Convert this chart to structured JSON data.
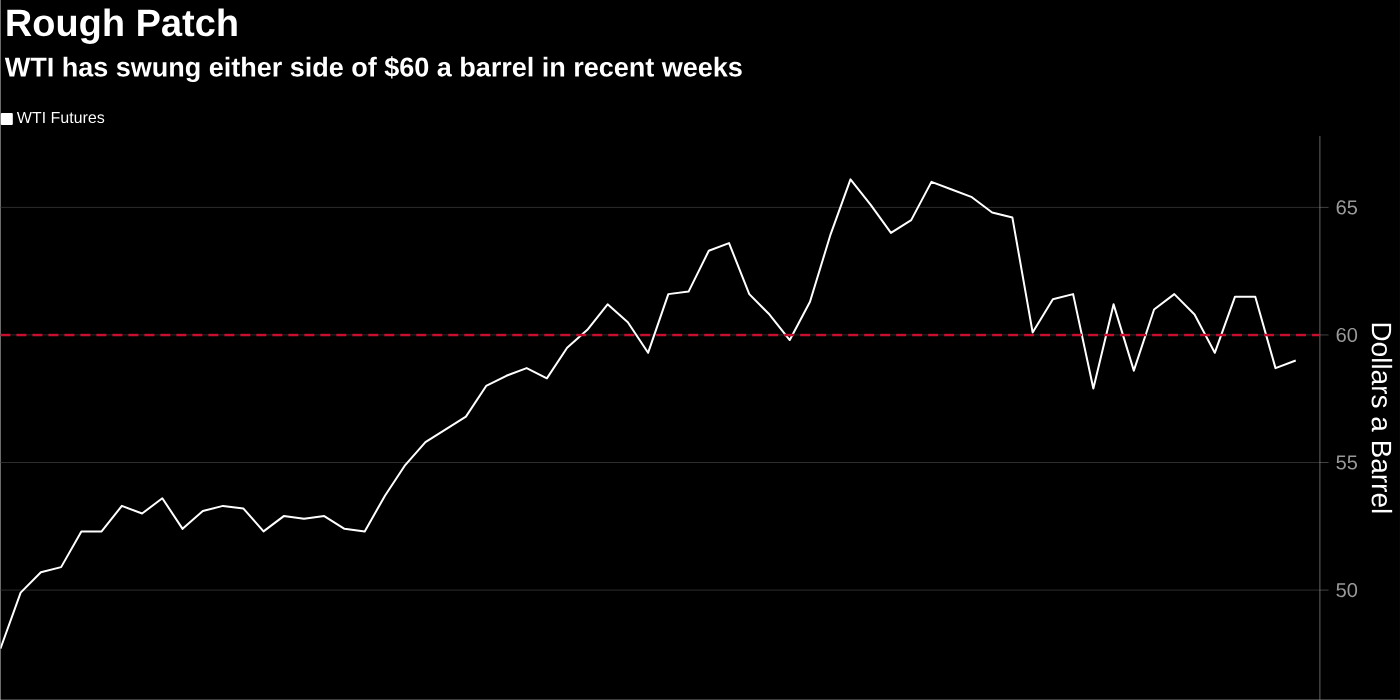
{
  "chart_data": {
    "type": "line",
    "title": "Rough Patch",
    "subtitle": "WTI has swung either side of $60 a barrel in recent weeks",
    "ylabel": "Dollars a Barrel",
    "categories": [
      null,
      null,
      null,
      null,
      null,
      null,
      null,
      null,
      null,
      null,
      null,
      null,
      null,
      null,
      null,
      null,
      null,
      null,
      null,
      null,
      null,
      null,
      null,
      null,
      null,
      null,
      null,
      null,
      null,
      null,
      null,
      null,
      null,
      null,
      null,
      null,
      null,
      null,
      null,
      null,
      null,
      null,
      null,
      null,
      null,
      null,
      null,
      null,
      null,
      null,
      null,
      null,
      null,
      null,
      null,
      null,
      null,
      null,
      null,
      null,
      null,
      null,
      null,
      null,
      null
    ],
    "series": [
      {
        "name": "WTI Futures",
        "color": "#ffffff",
        "values": [
          47.7,
          49.9,
          50.7,
          50.9,
          52.3,
          52.3,
          53.3,
          53.0,
          53.6,
          52.4,
          53.1,
          53.3,
          53.2,
          52.3,
          52.9,
          52.8,
          52.9,
          52.4,
          52.3,
          53.7,
          54.9,
          55.8,
          56.3,
          56.8,
          58.0,
          58.4,
          58.7,
          58.3,
          59.5,
          60.2,
          61.2,
          60.5,
          59.3,
          61.6,
          61.7,
          63.3,
          63.6,
          61.6,
          60.8,
          59.8,
          61.3,
          63.9,
          66.1,
          65.1,
          64.0,
          64.5,
          66.0,
          65.7,
          65.4,
          64.8,
          64.6,
          60.1,
          61.4,
          61.6,
          57.9,
          61.2,
          58.6,
          61.0,
          61.6,
          60.8,
          59.3,
          61.5,
          61.5,
          58.7,
          59.0
        ]
      }
    ],
    "ylim": [
      45.7,
      67.8
    ],
    "yticks": [
      50,
      55,
      60,
      65
    ],
    "grid": "y",
    "legend": "top left",
    "marker": "none",
    "line_style": "solid",
    "ref_lines": [
      {
        "axis": "y",
        "value": 60,
        "color": "#c8102e",
        "line_style": "dashed"
      }
    ]
  }
}
